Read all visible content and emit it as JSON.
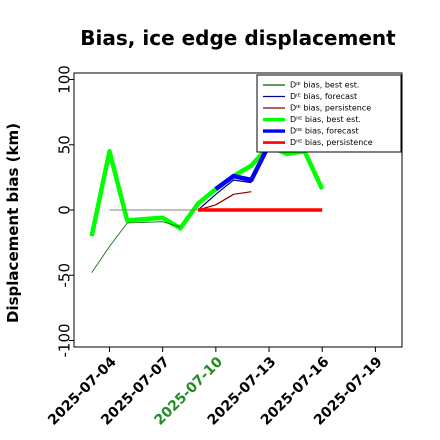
{
  "chart_data": {
    "type": "line",
    "title": "Bias, ice edge displacement",
    "xlabel": "",
    "ylabel": "Displacement bias (km)",
    "ylim": [
      -105,
      105
    ],
    "yticks": [
      100,
      50,
      0,
      -50,
      -100
    ],
    "ytick_labels": [
      "100",
      "50",
      "0",
      "-50",
      "-100"
    ],
    "xlim": [
      "2025-07-02T00:00",
      "2025-07-20T12:00"
    ],
    "xticks": [
      "2025-07-04",
      "2025-07-07",
      "2025-07-10",
      "2025-07-13",
      "2025-07-16",
      "2025-07-19"
    ],
    "highlighted_xtick": "2025-07-10",
    "highlight_color": "#228B22",
    "legend": {
      "position": "top-right",
      "entries": [
        {
          "series": "de_best",
          "label": "Dᴵᴱ bias, best est."
        },
        {
          "series": "de_forecast",
          "label": "Dᴵᴱ bias, forecast"
        },
        {
          "series": "de_persistence",
          "label": "Dᴵᴱ bias, persistence"
        },
        {
          "series": "diie_best",
          "label": "Dᴵᴵᴱ bias, best est."
        },
        {
          "series": "diie_forecast",
          "label": "Dᴵᴵᴱ bias, forecast"
        },
        {
          "series": "diie_persistence",
          "label": "Dᴵᴵᴱ bias, persistence"
        }
      ]
    },
    "series": [
      {
        "id": "diie_best",
        "name": "Dᴵᴵᴱ bias, best est.",
        "color": "#00ff00",
        "width": 4.5,
        "x": [
          "2025-07-03",
          "2025-07-04",
          "2025-07-05",
          "2025-07-07",
          "2025-07-08",
          "2025-07-09",
          "2025-07-10",
          "2025-07-11",
          "2025-07-12",
          "2025-07-13",
          "2025-07-14",
          "2025-07-15",
          "2025-07-16"
        ],
        "values": [
          -20,
          45,
          -8,
          -6,
          -14,
          5,
          16,
          26,
          34,
          49,
          43,
          45,
          16
        ]
      },
      {
        "id": "de_best",
        "name": "Dᴵᴱ bias, best est.",
        "color": "#006400",
        "width": 0.8,
        "x": [
          "2025-07-03",
          "2025-07-04",
          "2025-07-05",
          "2025-07-07",
          "2025-07-08"
        ],
        "values": [
          -48,
          -28,
          -10,
          -9,
          -13
        ]
      },
      {
        "id": "diie_forecast",
        "name": "Dᴵᴵᴱ bias, forecast",
        "color": "#0000ff",
        "width": 4.5,
        "x": [
          "2025-07-10",
          "2025-07-11",
          "2025-07-12",
          "2025-07-13"
        ],
        "values": [
          16,
          26,
          23,
          50
        ]
      },
      {
        "id": "de_forecast",
        "name": "Dᴵᴱ bias, forecast",
        "color": "#00008b",
        "width": 1.2,
        "x": [
          "2025-07-09",
          "2025-07-10",
          "2025-07-11",
          "2025-07-12"
        ],
        "values": [
          0,
          12,
          23,
          21
        ]
      },
      {
        "id": "de_persistence",
        "name": "Dᴵᴱ bias, persistence",
        "color": "#8b0000",
        "width": 1.2,
        "x": [
          "2025-07-09",
          "2025-07-10",
          "2025-07-11",
          "2025-07-12"
        ],
        "values": [
          0,
          4,
          12,
          14
        ]
      },
      {
        "id": "diie_persistence",
        "name": "Dᴵᴵᴱ bias, persistence",
        "color": "#ff0000",
        "width": 3.5,
        "x": [
          "2025-07-09",
          "2025-07-16"
        ],
        "values": [
          0,
          0
        ]
      },
      {
        "id": "zero_ref",
        "color": "#808080",
        "width": 1,
        "x": [
          "2025-07-04",
          "2025-07-09"
        ],
        "values": [
          0,
          0
        ]
      }
    ]
  }
}
